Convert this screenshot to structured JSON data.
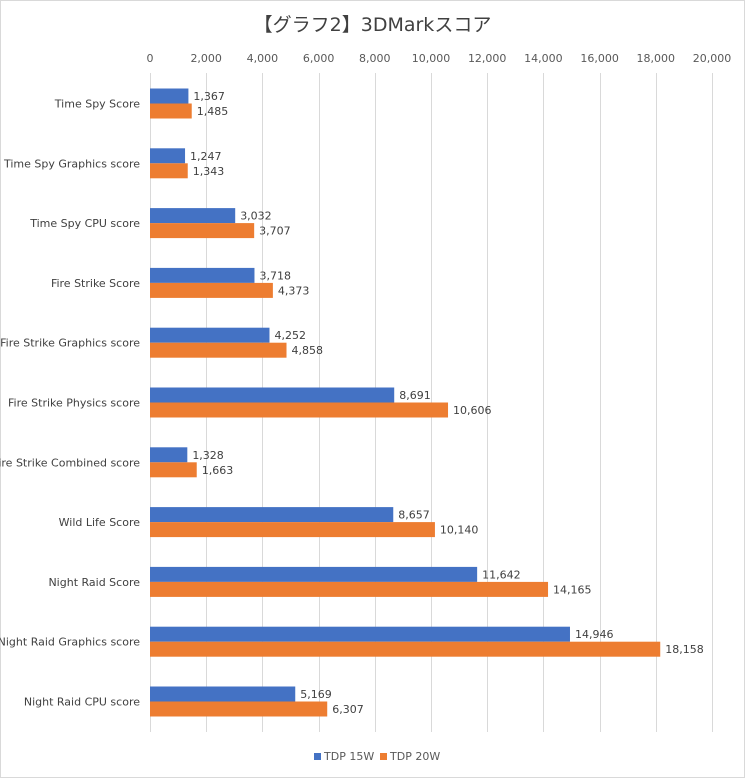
{
  "chart_data": {
    "type": "bar",
    "orientation": "horizontal",
    "title": "【グラフ2】3DMarkスコア",
    "categories": [
      "Time Spy Score",
      "Time Spy Graphics score",
      "Time Spy CPU score",
      "Fire Strike Score",
      "Fire Strike Graphics score",
      "Fire Strike Physics score",
      "Fire Strike Combined score",
      "Wild Life Score",
      "Night Raid Score",
      "Night Raid  Graphics score",
      "Night Raid CPU score"
    ],
    "series": [
      {
        "name": "TDP 15W",
        "color": "#4472c4",
        "values": [
          1367,
          1247,
          3032,
          3718,
          4252,
          8691,
          1328,
          8657,
          11642,
          14946,
          5169
        ],
        "labels": [
          "1,367",
          "1,247",
          "3,032",
          "3,718",
          "4,252",
          "8,691",
          "1,328",
          "8,657",
          "11,642",
          "14,946",
          "5,169"
        ]
      },
      {
        "name": "TDP 20W",
        "color": "#ed7d31",
        "values": [
          1485,
          1343,
          3707,
          4373,
          4858,
          10606,
          1663,
          10140,
          14165,
          18158,
          6307
        ],
        "labels": [
          "1,485",
          "1,343",
          "3,707",
          "4,373",
          "4,858",
          "10,606",
          "1,663",
          "10,140",
          "14,165",
          "18,158",
          "6,307"
        ]
      }
    ],
    "xlim": [
      0,
      20000
    ],
    "xticks": [
      0,
      2000,
      4000,
      6000,
      8000,
      10000,
      12000,
      14000,
      16000,
      18000,
      20000
    ],
    "xtick_labels": [
      "0",
      "2,000",
      "4,000",
      "6,000",
      "8,000",
      "10,000",
      "12,000",
      "14,000",
      "16,000",
      "18,000",
      "20,000"
    ],
    "x_axis_position": "top",
    "grid": true,
    "legend_position": "bottom",
    "xlabel": "",
    "ylabel": ""
  }
}
